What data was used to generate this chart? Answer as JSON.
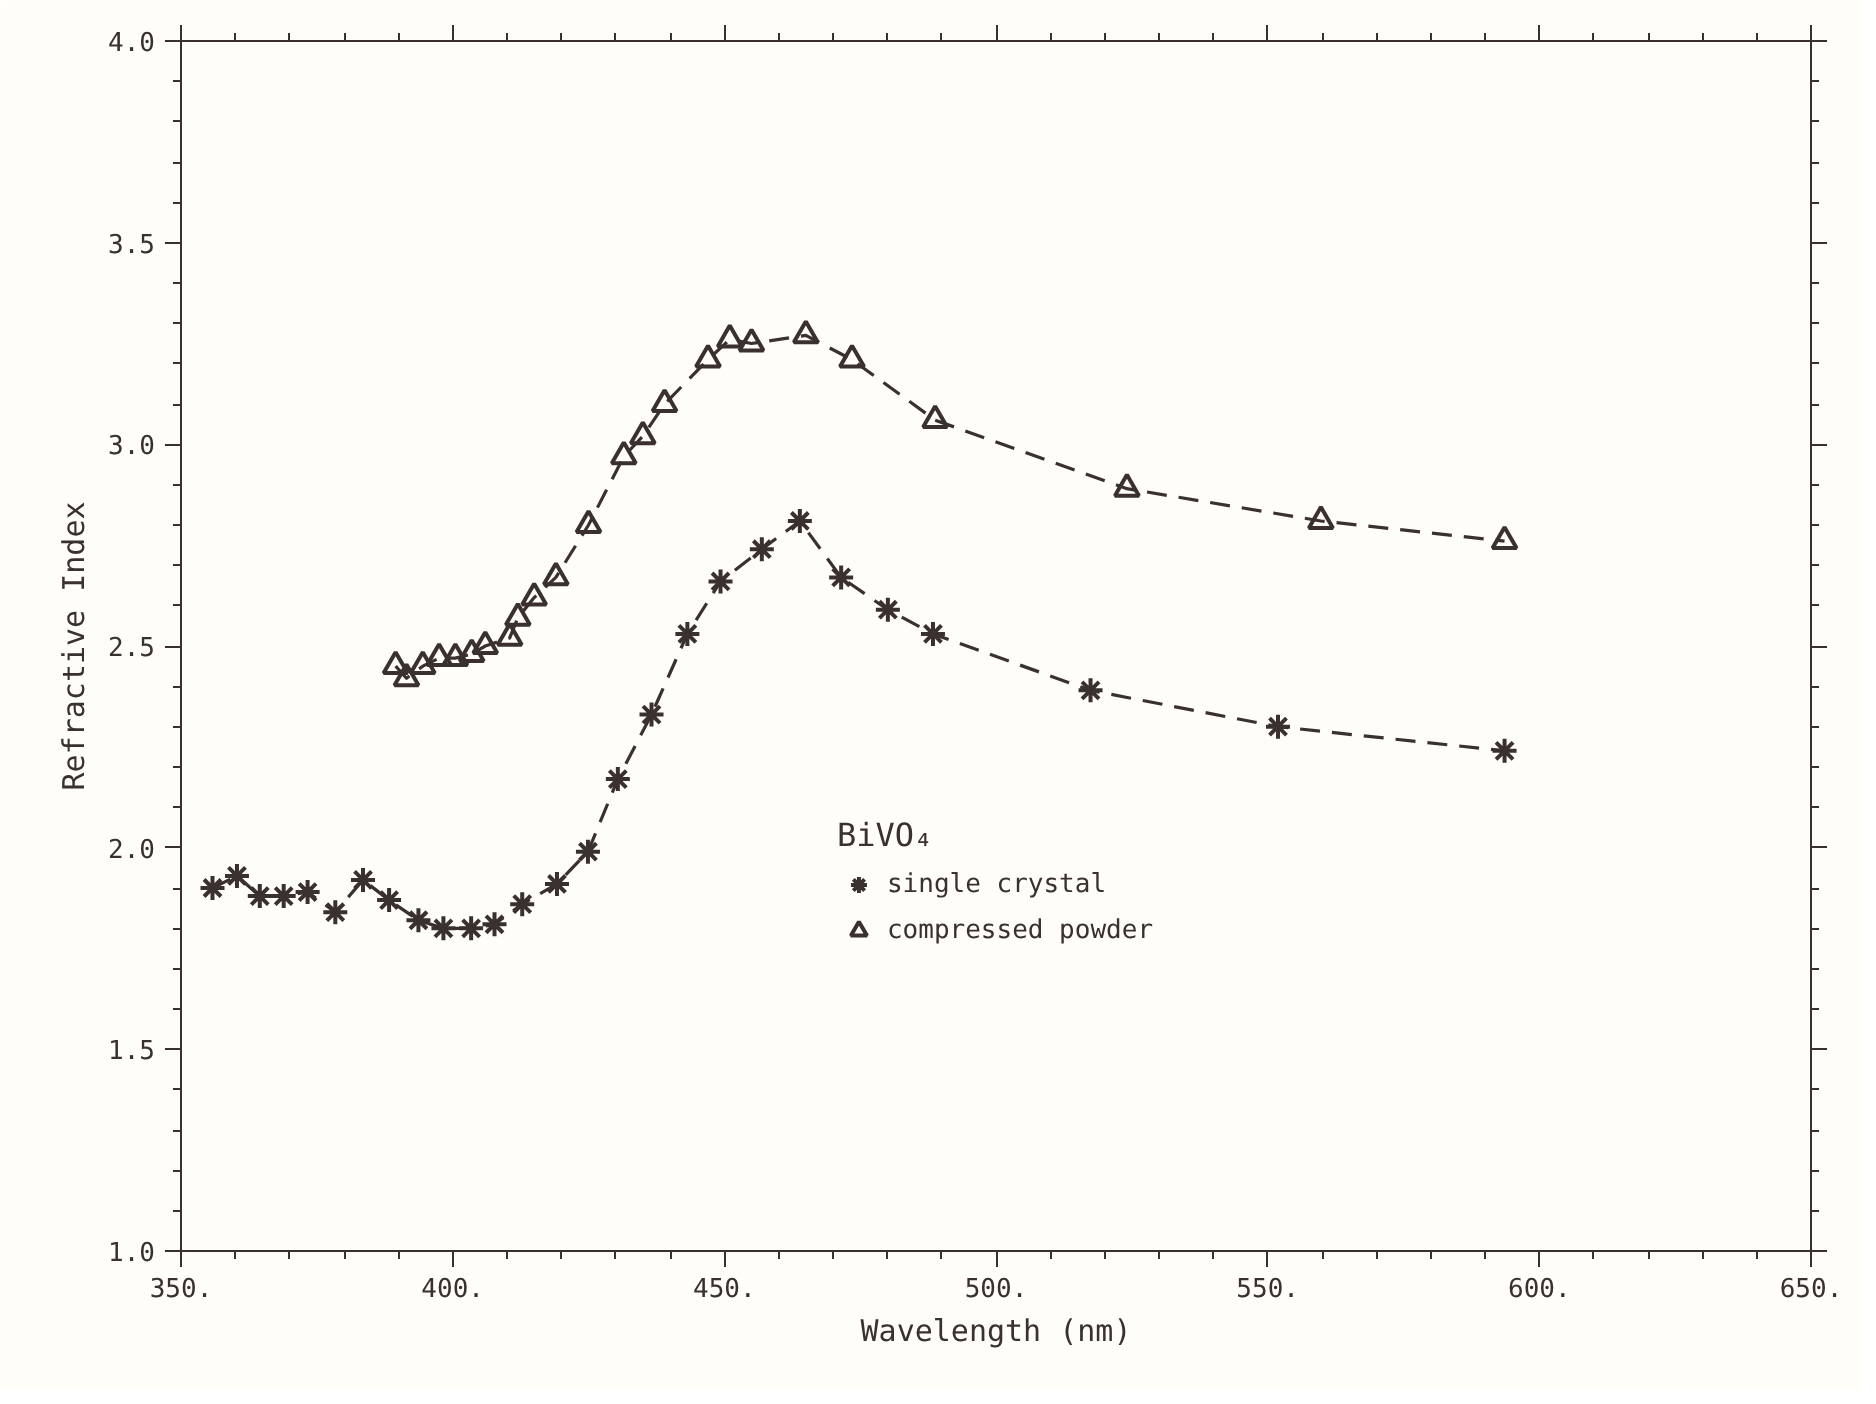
{
  "chart_data": {
    "type": "line",
    "xlabel": "Wavelength (nm)",
    "ylabel": "Refractive Index",
    "legend_title": "BiVO₄",
    "xlim": [
      350,
      650
    ],
    "ylim": [
      1.0,
      4.0
    ],
    "xticks": [
      {
        "value": 350,
        "label": "350."
      },
      {
        "value": 400,
        "label": "400."
      },
      {
        "value": 450,
        "label": "450."
      },
      {
        "value": 500,
        "label": "500."
      },
      {
        "value": 550,
        "label": "550."
      },
      {
        "value": 600,
        "label": "600."
      },
      {
        "value": 650,
        "label": "650."
      }
    ],
    "yticks": [
      {
        "value": 1.0,
        "label": "1.0"
      },
      {
        "value": 1.5,
        "label": "1.5"
      },
      {
        "value": 2.0,
        "label": "2.0"
      },
      {
        "value": 2.5,
        "label": "2.5"
      },
      {
        "value": 3.0,
        "label": "3.0"
      },
      {
        "value": 3.5,
        "label": "3.5"
      },
      {
        "value": 4.0,
        "label": "4.0"
      }
    ],
    "grid": false,
    "legend": "bottom",
    "line_style": "dashed",
    "series": [
      {
        "name": "single crystal",
        "color": "#3a3030",
        "marker": "cross",
        "x": [
          355.8,
          360.3,
          364.5,
          368.9,
          373.3,
          378.4,
          383.5,
          388.3,
          393.7,
          398.3,
          403.4,
          407.7,
          412.8,
          419.2,
          424.9,
          430.4,
          436.6,
          443.2,
          449.3,
          456.9,
          463.9,
          471.5,
          480.1,
          488.4,
          517.4,
          551.9,
          593.6
        ],
        "values": [
          1.9,
          1.93,
          1.88,
          1.88,
          1.89,
          1.84,
          1.92,
          1.87,
          1.82,
          1.8,
          1.8,
          1.81,
          1.86,
          1.91,
          1.99,
          2.17,
          2.33,
          2.53,
          2.66,
          2.74,
          2.81,
          2.67,
          2.59,
          2.53,
          2.39,
          2.3,
          2.24
        ]
      },
      {
        "name": "compressed powder",
        "color": "#3a3030",
        "marker": "triangle",
        "x": [
          389.5,
          391.5,
          394.5,
          397.5,
          400.5,
          403.5,
          406,
          410.5,
          412,
          415,
          419,
          425,
          431.5,
          435,
          439,
          447,
          451,
          455,
          465,
          473.5,
          488.8,
          524.1,
          559.8,
          593.6
        ],
        "values": [
          2.45,
          2.42,
          2.45,
          2.47,
          2.47,
          2.48,
          2.5,
          2.52,
          2.57,
          2.62,
          2.67,
          2.8,
          2.97,
          3.02,
          3.1,
          3.21,
          3.26,
          3.25,
          3.27,
          3.21,
          3.06,
          2.89,
          2.81,
          2.76
        ]
      }
    ]
  }
}
